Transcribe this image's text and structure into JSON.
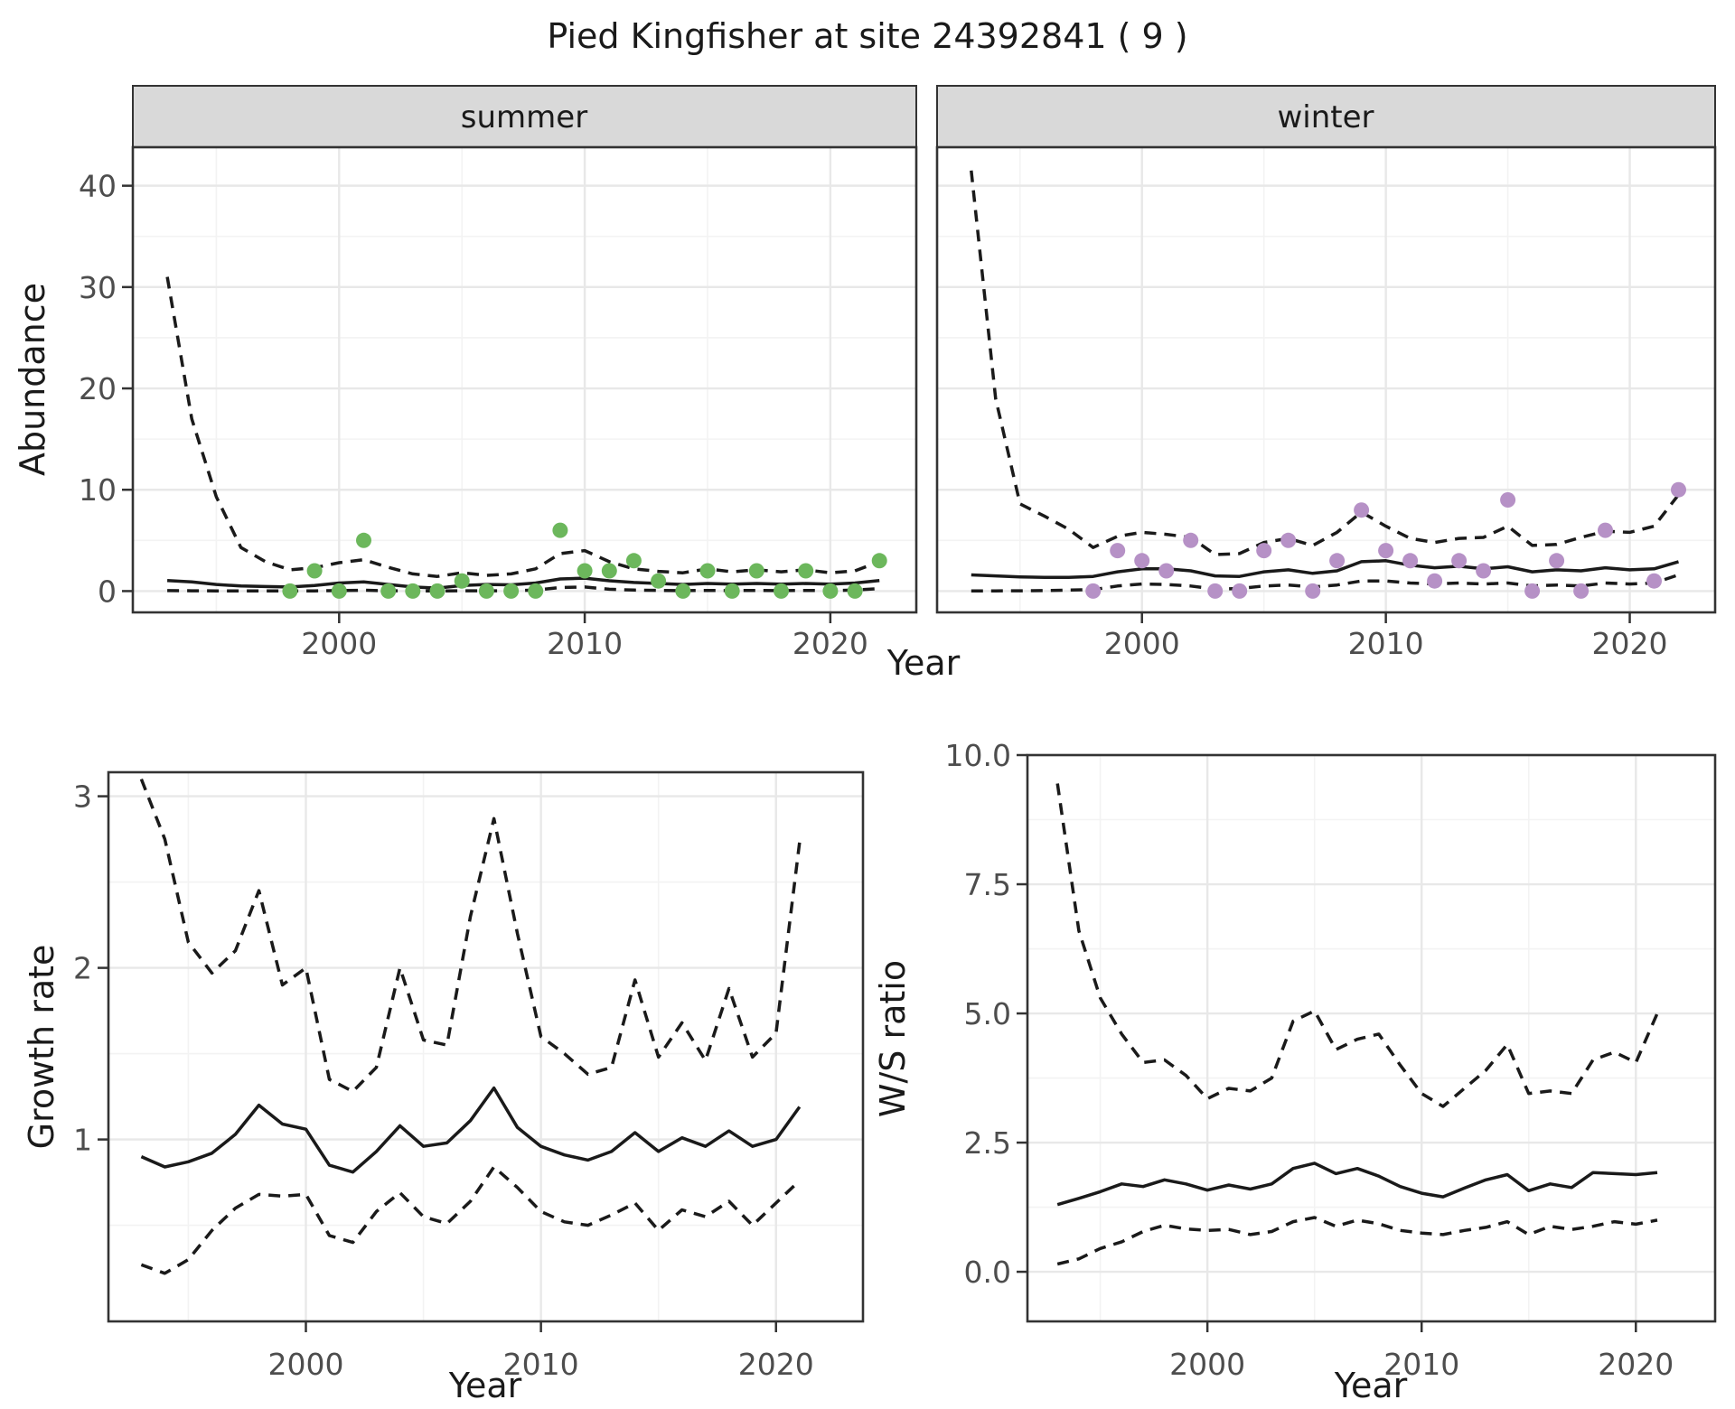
{
  "title": "Pied Kingfisher at site 24392841 ( 9 )",
  "colors": {
    "summer_point": "#6CB75C",
    "winter_point": "#B691C6",
    "line": "#1a1a1a",
    "grid_major": "#e8e8e8",
    "grid_minor": "#f3f3f3",
    "strip_fill": "#d9d9d9",
    "panel_border": "#333333",
    "tick_label": "#4d4d4d"
  },
  "chart_data": [
    {
      "id": "abundance-summer",
      "type": "line",
      "facet_label": "summer",
      "ylabel": "Abundance",
      "xlabel": "Year",
      "xlim": [
        1991.6,
        2023.5
      ],
      "ylim": [
        -2.1,
        43.8
      ],
      "xticks": {
        "values": [
          2000,
          2010,
          2020
        ],
        "labels": [
          "2000",
          "2010",
          "2020"
        ]
      },
      "xminor": [
        1995,
        2005,
        2015
      ],
      "yticks": {
        "values": [
          0,
          10,
          20,
          30,
          40
        ],
        "labels": [
          "0",
          "10",
          "20",
          "30",
          "40"
        ]
      },
      "yminor": [
        5,
        15,
        25,
        35
      ],
      "grid": true,
      "legend": "none",
      "points": {
        "years": [
          1998,
          1999,
          2000,
          2001,
          2002,
          2003,
          2004,
          2005,
          2006,
          2007,
          2008,
          2009,
          2010,
          2011,
          2012,
          2013,
          2014,
          2015,
          2016,
          2017,
          2018,
          2019,
          2020,
          2021,
          2022
        ],
        "values": [
          0,
          2,
          0,
          5,
          0,
          0,
          0,
          1,
          0,
          0,
          0,
          6,
          2,
          2,
          3,
          1,
          0,
          2,
          0,
          2,
          0,
          2,
          0,
          0,
          3
        ]
      },
      "fit": {
        "years": [
          1993,
          1994,
          1995,
          1996,
          1997,
          1998,
          1999,
          2000,
          2001,
          2002,
          2003,
          2004,
          2005,
          2006,
          2007,
          2008,
          2009,
          2010,
          2011,
          2012,
          2013,
          2014,
          2015,
          2016,
          2017,
          2018,
          2019,
          2020,
          2021,
          2022
        ],
        "values": [
          1.05,
          0.9,
          0.65,
          0.5,
          0.45,
          0.4,
          0.55,
          0.8,
          0.9,
          0.65,
          0.4,
          0.3,
          0.55,
          0.65,
          0.62,
          0.8,
          1.2,
          1.28,
          1.02,
          0.85,
          0.75,
          0.65,
          0.75,
          0.68,
          0.75,
          0.68,
          0.75,
          0.68,
          0.8,
          1.05
        ]
      },
      "upper": {
        "years": [
          1993,
          1994,
          1995,
          1996,
          1997,
          1998,
          1999,
          2000,
          2001,
          2002,
          2003,
          2004,
          2005,
          2006,
          2007,
          2008,
          2009,
          2010,
          2011,
          2012,
          2013,
          2014,
          2015,
          2016,
          2017,
          2018,
          2019,
          2020,
          2021,
          2022
        ],
        "values": [
          31,
          17,
          9.3,
          4.3,
          2.9,
          2.1,
          2.3,
          2.8,
          3.1,
          2.35,
          1.7,
          1.45,
          1.8,
          1.55,
          1.7,
          2.2,
          3.7,
          4.0,
          2.9,
          2.2,
          1.95,
          1.8,
          2.2,
          1.9,
          2.1,
          1.9,
          2.1,
          1.8,
          2.0,
          2.9
        ]
      },
      "lower": {
        "years": [
          1993,
          1994,
          1995,
          1996,
          1997,
          1998,
          1999,
          2000,
          2001,
          2002,
          2003,
          2004,
          2005,
          2006,
          2007,
          2008,
          2009,
          2010,
          2011,
          2012,
          2013,
          2014,
          2015,
          2016,
          2017,
          2018,
          2019,
          2020,
          2021,
          2022
        ],
        "values": [
          0.05,
          0.03,
          0.02,
          0.01,
          0.01,
          0.01,
          0.02,
          0.06,
          0.08,
          0.03,
          0.01,
          0.01,
          0.03,
          0.03,
          0.03,
          0.1,
          0.35,
          0.4,
          0.18,
          0.1,
          0.07,
          0.05,
          0.07,
          0.05,
          0.07,
          0.05,
          0.07,
          0.05,
          0.1,
          0.25
        ]
      }
    },
    {
      "id": "abundance-winter",
      "type": "line",
      "facet_label": "winter",
      "ylabel": "",
      "xlabel": "Year",
      "xlim": [
        1991.6,
        2023.5
      ],
      "ylim": [
        -2.1,
        43.8
      ],
      "xticks": {
        "values": [
          2000,
          2010,
          2020
        ],
        "labels": [
          "2000",
          "2010",
          "2020"
        ]
      },
      "xminor": [
        1995,
        2005,
        2015
      ],
      "yticks": {
        "values": [
          0,
          10,
          20,
          30,
          40
        ],
        "labels": [
          "0",
          "10",
          "20",
          "30",
          "40"
        ]
      },
      "yminor": [
        5,
        15,
        25,
        35
      ],
      "grid": true,
      "legend": "none",
      "points": {
        "years": [
          1998,
          1999,
          2000,
          2001,
          2002,
          2003,
          2004,
          2005,
          2006,
          2007,
          2008,
          2009,
          2010,
          2011,
          2012,
          2013,
          2014,
          2015,
          2016,
          2017,
          2018,
          2019,
          2021,
          2022
        ],
        "values": [
          0,
          4,
          3,
          2,
          5,
          0,
          0,
          4,
          5,
          0,
          3,
          8,
          4,
          3,
          1,
          3,
          2,
          9,
          0,
          3,
          0,
          6,
          1,
          10
        ]
      },
      "fit": {
        "years": [
          1993,
          1994,
          1995,
          1996,
          1997,
          1998,
          1999,
          2000,
          2001,
          2002,
          2003,
          2004,
          2005,
          2006,
          2007,
          2008,
          2009,
          2010,
          2011,
          2012,
          2013,
          2014,
          2015,
          2016,
          2017,
          2018,
          2019,
          2020,
          2021,
          2022
        ],
        "values": [
          1.6,
          1.5,
          1.4,
          1.35,
          1.35,
          1.45,
          1.9,
          2.2,
          2.2,
          2.0,
          1.5,
          1.45,
          1.9,
          2.1,
          1.75,
          2.0,
          2.9,
          3.0,
          2.55,
          2.3,
          2.45,
          2.2,
          2.4,
          1.9,
          2.1,
          2.0,
          2.3,
          2.1,
          2.2,
          2.9
        ]
      },
      "upper": {
        "years": [
          1993,
          1994,
          1995,
          1996,
          1997,
          1998,
          1999,
          2000,
          2001,
          2002,
          2003,
          2004,
          2005,
          2006,
          2007,
          2008,
          2009,
          2010,
          2011,
          2012,
          2013,
          2014,
          2015,
          2016,
          2017,
          2018,
          2019,
          2020,
          2021,
          2022
        ],
        "values": [
          41.5,
          19,
          8.6,
          7.4,
          6.1,
          4.3,
          5.4,
          5.8,
          5.6,
          5.3,
          3.6,
          3.7,
          4.8,
          5.2,
          4.5,
          5.8,
          7.8,
          6.4,
          5.2,
          4.8,
          5.2,
          5.3,
          6.4,
          4.5,
          4.6,
          5.3,
          5.9,
          5.8,
          6.4,
          9.5
        ]
      },
      "lower": {
        "years": [
          1993,
          1994,
          1995,
          1996,
          1997,
          1998,
          1999,
          2000,
          2001,
          2002,
          2003,
          2004,
          2005,
          2006,
          2007,
          2008,
          2009,
          2010,
          2011,
          2012,
          2013,
          2014,
          2015,
          2016,
          2017,
          2018,
          2019,
          2020,
          2021,
          2022
        ],
        "values": [
          0.02,
          0.02,
          0.03,
          0.05,
          0.1,
          0.15,
          0.5,
          0.7,
          0.65,
          0.5,
          0.2,
          0.25,
          0.5,
          0.6,
          0.4,
          0.6,
          1.0,
          1.0,
          0.8,
          0.7,
          0.8,
          0.7,
          0.8,
          0.5,
          0.6,
          0.5,
          0.8,
          0.7,
          0.8,
          1.6
        ]
      }
    },
    {
      "id": "growth-rate",
      "type": "line",
      "facet_label": "",
      "ylabel": "Growth rate",
      "xlabel": "Year",
      "xlim": [
        1991.6,
        2023.7
      ],
      "ylim": [
        -0.06,
        3.14
      ],
      "xticks": {
        "values": [
          2000,
          2010,
          2020
        ],
        "labels": [
          "2000",
          "2010",
          "2020"
        ]
      },
      "xminor": [
        1995,
        2005,
        2015
      ],
      "yticks": {
        "values": [
          1,
          2,
          3
        ],
        "labels": [
          "1",
          "2",
          "3"
        ]
      },
      "yminor": [
        0.5,
        1.5,
        2.5
      ],
      "grid": true,
      "legend": "none",
      "fit": {
        "years": [
          1993,
          1994,
          1995,
          1996,
          1997,
          1998,
          1999,
          2000,
          2001,
          2002,
          2003,
          2004,
          2005,
          2006,
          2007,
          2008,
          2009,
          2010,
          2011,
          2012,
          2013,
          2014,
          2015,
          2016,
          2017,
          2018,
          2019,
          2020,
          2021
        ],
        "values": [
          0.9,
          0.84,
          0.87,
          0.92,
          1.03,
          1.2,
          1.09,
          1.06,
          0.85,
          0.81,
          0.93,
          1.08,
          0.96,
          0.98,
          1.11,
          1.3,
          1.07,
          0.96,
          0.91,
          0.88,
          0.93,
          1.04,
          0.93,
          1.01,
          0.96,
          1.05,
          0.96,
          1.0,
          1.19
        ]
      },
      "upper": {
        "years": [
          1993,
          1994,
          1995,
          1996,
          1997,
          1998,
          1999,
          2000,
          2001,
          2002,
          2003,
          2004,
          2005,
          2006,
          2007,
          2008,
          2009,
          2010,
          2011,
          2012,
          2013,
          2014,
          2015,
          2016,
          2017,
          2018,
          2019,
          2020,
          2021
        ],
        "values": [
          3.1,
          2.75,
          2.15,
          1.97,
          2.1,
          2.45,
          1.9,
          2.0,
          1.35,
          1.28,
          1.42,
          2.0,
          1.58,
          1.55,
          2.3,
          2.87,
          2.2,
          1.6,
          1.5,
          1.38,
          1.42,
          1.93,
          1.48,
          1.68,
          1.46,
          1.88,
          1.48,
          1.62,
          2.73
        ]
      },
      "lower": {
        "years": [
          1993,
          1994,
          1995,
          1996,
          1997,
          1998,
          1999,
          2000,
          2001,
          2002,
          2003,
          2004,
          2005,
          2006,
          2007,
          2008,
          2009,
          2010,
          2011,
          2012,
          2013,
          2014,
          2015,
          2016,
          2017,
          2018,
          2019,
          2020,
          2021
        ],
        "values": [
          0.27,
          0.22,
          0.3,
          0.47,
          0.6,
          0.68,
          0.67,
          0.68,
          0.44,
          0.4,
          0.58,
          0.69,
          0.55,
          0.51,
          0.64,
          0.84,
          0.72,
          0.58,
          0.52,
          0.5,
          0.56,
          0.63,
          0.47,
          0.59,
          0.55,
          0.64,
          0.5,
          0.63,
          0.76
        ]
      }
    },
    {
      "id": "ws-ratio",
      "type": "line",
      "facet_label": "",
      "ylabel": "W/S ratio",
      "xlabel": "Year",
      "xlim": [
        1991.6,
        2023.7
      ],
      "ylim": [
        -0.96,
        10.0
      ],
      "xticks": {
        "values": [
          2000,
          2010,
          2020
        ],
        "labels": [
          "2000",
          "2010",
          "2020"
        ]
      },
      "xminor": [
        1995,
        2005,
        2015
      ],
      "yticks": {
        "values": [
          0,
          2.5,
          5,
          7.5,
          10
        ],
        "labels": [
          "0.0",
          "2.5",
          "5.0",
          "7.5",
          "10.0"
        ]
      },
      "yminor": [
        1.25,
        3.75,
        6.25,
        8.75
      ],
      "grid": true,
      "legend": "none",
      "fit": {
        "years": [
          1993,
          1994,
          1995,
          1996,
          1997,
          1998,
          1999,
          2000,
          2001,
          2002,
          2003,
          2004,
          2005,
          2006,
          2007,
          2008,
          2009,
          2010,
          2011,
          2012,
          2013,
          2014,
          2015,
          2016,
          2017,
          2018,
          2019,
          2020,
          2021
        ],
        "values": [
          1.3,
          1.42,
          1.55,
          1.7,
          1.65,
          1.78,
          1.7,
          1.58,
          1.68,
          1.6,
          1.7,
          2.0,
          2.1,
          1.9,
          2.0,
          1.85,
          1.65,
          1.52,
          1.45,
          1.62,
          1.78,
          1.88,
          1.57,
          1.7,
          1.63,
          1.92,
          1.9,
          1.88,
          1.92
        ]
      },
      "upper": {
        "years": [
          1993,
          1994,
          1995,
          1996,
          1997,
          1998,
          1999,
          2000,
          2001,
          2002,
          2003,
          2004,
          2005,
          2006,
          2007,
          2008,
          2009,
          2010,
          2011,
          2012,
          2013,
          2014,
          2015,
          2016,
          2017,
          2018,
          2019,
          2020,
          2021
        ],
        "values": [
          9.45,
          6.6,
          5.3,
          4.6,
          4.05,
          4.1,
          3.8,
          3.35,
          3.55,
          3.5,
          3.75,
          4.85,
          5.05,
          4.3,
          4.5,
          4.6,
          4.0,
          3.45,
          3.2,
          3.55,
          3.9,
          4.4,
          3.45,
          3.5,
          3.45,
          4.1,
          4.25,
          4.05,
          5.0
        ]
      },
      "lower": {
        "years": [
          1993,
          1994,
          1995,
          1996,
          1997,
          1998,
          1999,
          2000,
          2001,
          2002,
          2003,
          2004,
          2005,
          2006,
          2007,
          2008,
          2009,
          2010,
          2011,
          2012,
          2013,
          2014,
          2015,
          2016,
          2017,
          2018,
          2019,
          2020,
          2021
        ],
        "values": [
          0.15,
          0.25,
          0.45,
          0.58,
          0.78,
          0.9,
          0.83,
          0.8,
          0.82,
          0.72,
          0.78,
          0.97,
          1.05,
          0.88,
          1.0,
          0.93,
          0.8,
          0.75,
          0.72,
          0.8,
          0.86,
          0.97,
          0.72,
          0.88,
          0.82,
          0.88,
          0.97,
          0.92,
          1.0
        ]
      }
    }
  ]
}
